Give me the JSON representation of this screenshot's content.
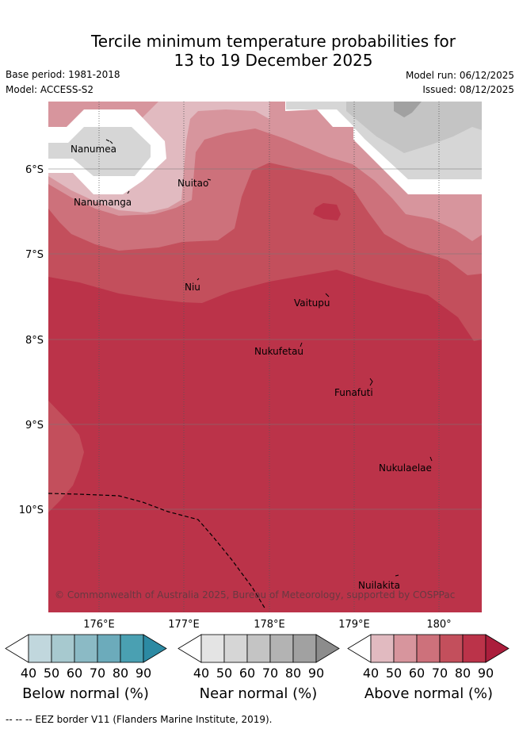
{
  "title": {
    "line1": "Tercile minimum temperature probabilities for",
    "line2": "13 to 19 December 2025"
  },
  "meta": {
    "base_period": "Base period: 1981-2018",
    "model": "Model: ACCESS-S2",
    "model_run": "Model run: 06/12/2025",
    "issued": "Issued: 08/12/2025"
  },
  "map": {
    "lat_labels": [
      "6°S",
      "7°S",
      "8°S",
      "9°S",
      "10°S"
    ],
    "lon_labels": [
      "176°E",
      "177°E",
      "178°E",
      "179°E",
      "180°"
    ],
    "places": [
      "Nanumea",
      "Nuitao",
      "Nanumanga",
      "Niu",
      "Vaitupu",
      "Nukufetau",
      "Funafuti",
      "Nukulaelae",
      "Nuilakita"
    ],
    "credit": "© Commonwealth of Australia 2025, Bureau of Meteorology, supported by COSPPac",
    "colors": {
      "above": [
        "#e1bac0",
        "#d7959d",
        "#cd717b",
        "#c34f5c",
        "#bb3349",
        "#ab1e3c"
      ],
      "near": [
        "#e4e4e4",
        "#d6d6d6",
        "#c4c4c4",
        "#b3b3b3",
        "#a1a1a1",
        "#8c8c8c"
      ],
      "below": [
        "#c1d7dd",
        "#a7c9cf",
        "#8bbac5",
        "#6cabbb",
        "#4aa0b2",
        "#2c8aa3"
      ]
    }
  },
  "colorbars": [
    {
      "title": "Below normal (%)",
      "ticks": [
        "40",
        "50",
        "60",
        "70",
        "80",
        "90"
      ]
    },
    {
      "title": "Near normal (%)",
      "ticks": [
        "40",
        "50",
        "60",
        "70",
        "80",
        "90"
      ]
    },
    {
      "title": "Above normal (%)",
      "ticks": [
        "40",
        "50",
        "60",
        "70",
        "80",
        "90"
      ]
    }
  ],
  "footnote": "--  --  -- EEZ border V11 (Flanders Marine Institute, 2019)."
}
